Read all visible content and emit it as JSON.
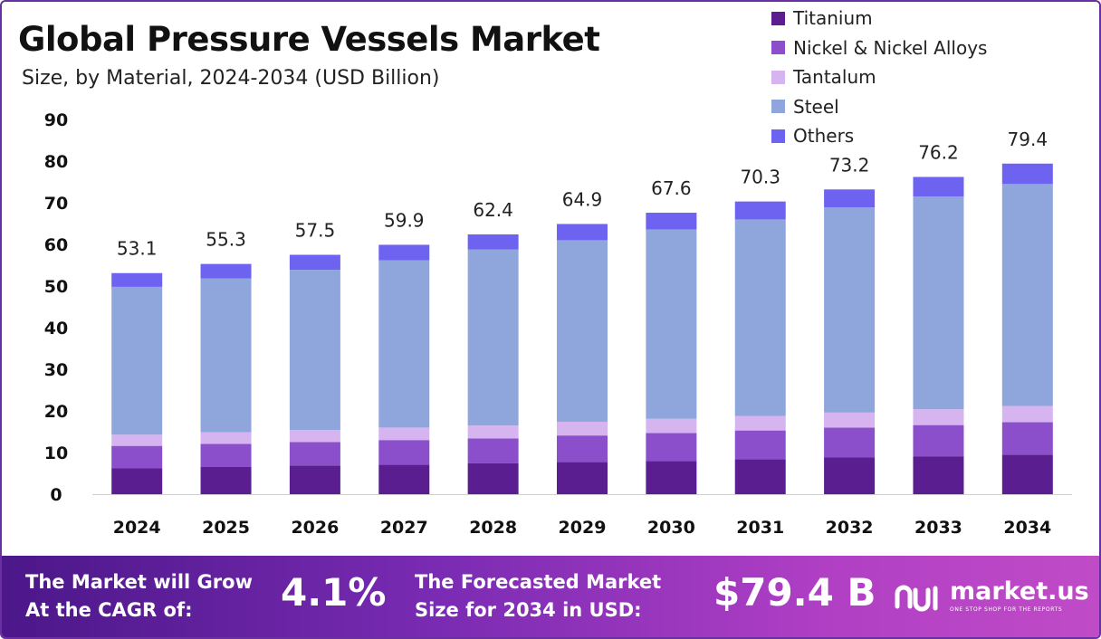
{
  "header": {
    "title": "Global Pressure Vessels Market",
    "subtitle": "Size, by Material, 2024-2034 (USD Billion)"
  },
  "legend": [
    {
      "label": "Titanium",
      "color": "#5a1e90"
    },
    {
      "label": "Nickel & Nickel Alloys",
      "color": "#8b4fcc"
    },
    {
      "label": "Tantalum",
      "color": "#d6b4ef"
    },
    {
      "label": "Steel",
      "color": "#8fa6dc"
    },
    {
      "label": "Others",
      "color": "#6e63f0"
    }
  ],
  "chart_data": {
    "type": "bar",
    "stacked": true,
    "categories": [
      "2024",
      "2025",
      "2026",
      "2027",
      "2028",
      "2029",
      "2030",
      "2031",
      "2032",
      "2033",
      "2034"
    ],
    "series": [
      {
        "name": "Titanium",
        "color": "#5a1e90",
        "values": [
          6.2,
          6.6,
          6.9,
          7.1,
          7.4,
          7.7,
          8.0,
          8.4,
          8.8,
          9.1,
          9.5
        ]
      },
      {
        "name": "Nickel & Nickel Alloys",
        "color": "#8b4fcc",
        "values": [
          5.4,
          5.5,
          5.6,
          5.9,
          6.0,
          6.4,
          6.7,
          6.9,
          7.2,
          7.5,
          7.8
        ]
      },
      {
        "name": "Tantalum",
        "color": "#d6b4ef",
        "values": [
          2.7,
          2.8,
          2.9,
          3.0,
          3.1,
          3.3,
          3.4,
          3.5,
          3.6,
          3.8,
          3.9
        ]
      },
      {
        "name": "Steel",
        "color": "#8fa6dc",
        "values": [
          35.5,
          36.9,
          38.5,
          40.2,
          42.3,
          43.6,
          45.5,
          47.2,
          49.3,
          51.1,
          53.3
        ]
      },
      {
        "name": "Others",
        "color": "#6e63f0",
        "values": [
          3.3,
          3.5,
          3.6,
          3.7,
          3.6,
          3.9,
          4.0,
          4.3,
          4.3,
          4.7,
          4.9
        ]
      }
    ],
    "totals": [
      "53.1",
      "55.3",
      "57.5",
      "59.9",
      "62.4",
      "64.9",
      "67.6",
      "70.3",
      "73.2",
      "76.2",
      "79.4"
    ],
    "yticks": [
      "0",
      "10",
      "20",
      "30",
      "40",
      "50",
      "60",
      "70",
      "80",
      "90"
    ],
    "ylim": [
      0,
      90
    ],
    "xlabel": "",
    "ylabel": "",
    "grid": false,
    "legend_position": "top-right"
  },
  "banner": {
    "cagr_label": "The Market will Grow\nAt the CAGR of:",
    "cagr_value": "4.1%",
    "forecast_label": "The Forecasted Market\nSize for 2034 in USD:",
    "forecast_value": "$79.4 B",
    "brand_name": "market.us",
    "brand_tagline": "ONE STOP SHOP FOR THE REPORTS"
  }
}
